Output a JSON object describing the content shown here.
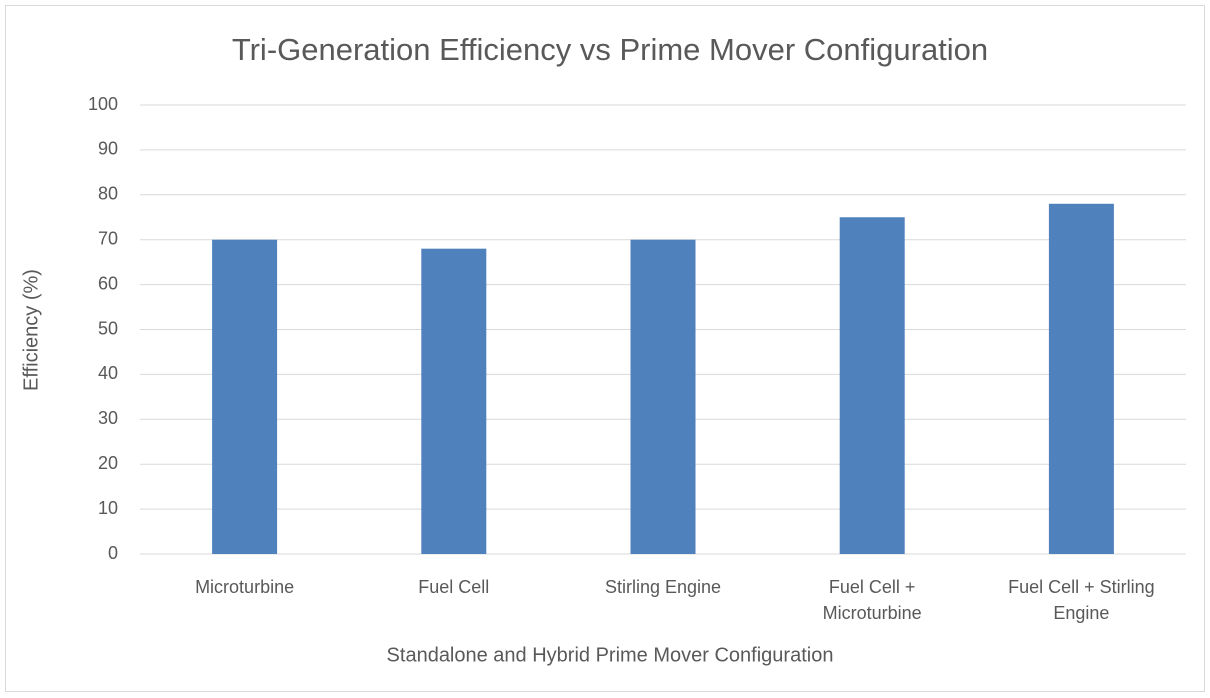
{
  "chart_data": {
    "type": "bar",
    "title": "Tri-Generation Efficiency vs Prime Mover Configuration",
    "x_label": "Standalone and Hybrid Prime Mover Configuration",
    "y_label": "Efficiency (%)",
    "categories": [
      "Microturbine",
      "Fuel Cell",
      "Stirling Engine",
      "Fuel Cell + Microturbine",
      "Fuel Cell + Stirling Engine"
    ],
    "values": [
      70,
      68,
      70,
      75,
      78
    ],
    "color": "#4f81bd",
    "ylim": [
      0,
      100
    ],
    "yticks": [
      0,
      10,
      20,
      30,
      40,
      50,
      60,
      70,
      80,
      90,
      100
    ],
    "grid": true
  }
}
